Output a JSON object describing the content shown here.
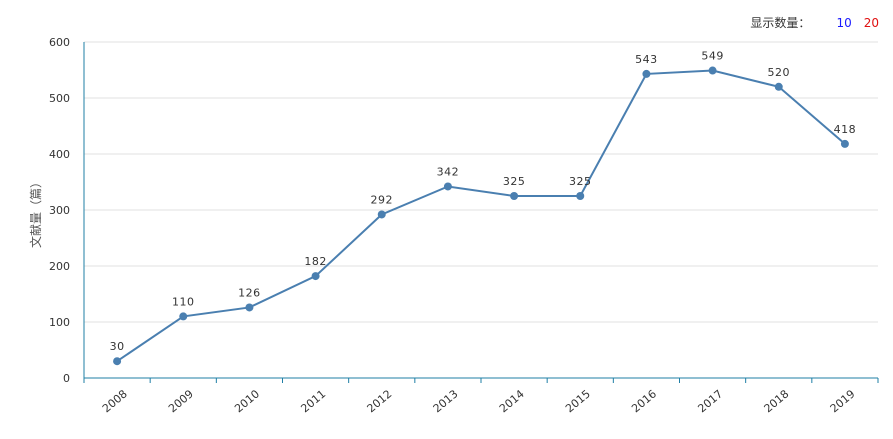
{
  "controls": {
    "label": "显示数量：",
    "options": [
      "10",
      "20"
    ]
  },
  "chart_data": {
    "type": "line",
    "title": "",
    "xlabel": "",
    "ylabel": "文献量（篇）",
    "ylim": [
      0,
      600
    ],
    "yticks": [
      0,
      100,
      200,
      300,
      400,
      500,
      600
    ],
    "categories": [
      "2008",
      "2009",
      "2010",
      "2011",
      "2012",
      "2013",
      "2014",
      "2015",
      "2016",
      "2017",
      "2018",
      "2019"
    ],
    "series": [
      {
        "values": [
          30,
          110,
          126,
          182,
          292,
          342,
          325,
          325,
          543,
          549,
          520,
          418
        ]
      }
    ],
    "data_labels": true,
    "grid": true,
    "colors": {
      "line": "#4a7fb0",
      "axis": "#1f7fa6",
      "grid": "#e2e2e2"
    }
  }
}
